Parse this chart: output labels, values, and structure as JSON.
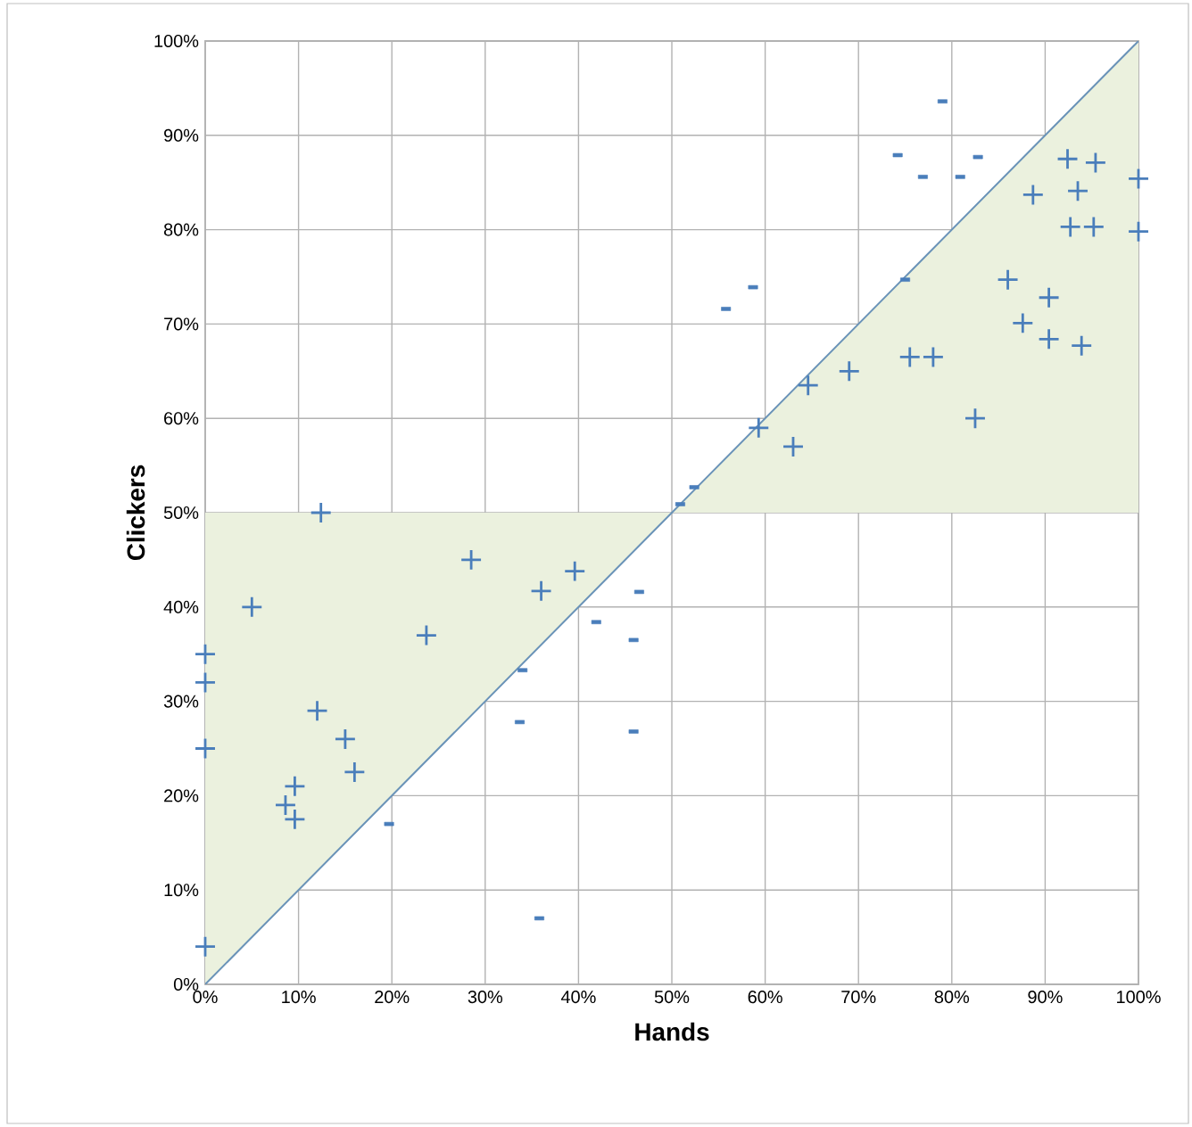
{
  "chart_data": {
    "type": "scatter",
    "xlabel": "Hands",
    "ylabel": "Clickers",
    "xlim": [
      0,
      100
    ],
    "ylim": [
      0,
      100
    ],
    "xticks": [
      {
        "value": 0,
        "label": "0%"
      },
      {
        "value": 10,
        "label": "10%"
      },
      {
        "value": 20,
        "label": "20%"
      },
      {
        "value": 30,
        "label": "30%"
      },
      {
        "value": 40,
        "label": "40%"
      },
      {
        "value": 50,
        "label": "50%"
      },
      {
        "value": 60,
        "label": "60%"
      },
      {
        "value": 70,
        "label": "70%"
      },
      {
        "value": 80,
        "label": "80%"
      },
      {
        "value": 90,
        "label": "90%"
      },
      {
        "value": 100,
        "label": "100%"
      }
    ],
    "yticks": [
      {
        "value": 0,
        "label": "0%"
      },
      {
        "value": 10,
        "label": "10%"
      },
      {
        "value": 20,
        "label": "20%"
      },
      {
        "value": 30,
        "label": "30%"
      },
      {
        "value": 40,
        "label": "40%"
      },
      {
        "value": 50,
        "label": "50%"
      },
      {
        "value": 60,
        "label": "60%"
      },
      {
        "value": 70,
        "label": "70%"
      },
      {
        "value": 80,
        "label": "80%"
      },
      {
        "value": 90,
        "label": "90%"
      },
      {
        "value": 100,
        "label": "100%"
      }
    ],
    "grid": true,
    "series": [
      {
        "type": "line",
        "color": "#6a93b8",
        "marker": "none",
        "x": [
          0,
          50,
          100
        ],
        "values": [
          0,
          50,
          100
        ],
        "lower": [
          0,
          50,
          50
        ],
        "upper": [
          50,
          50,
          100
        ]
      },
      {
        "color": "#4a7ebb",
        "marker": "cross",
        "x": [
          0,
          0,
          0,
          0,
          5,
          12.4,
          12,
          9.6,
          8.6,
          9.6,
          15,
          16,
          23.7,
          28.5,
          36,
          39.6,
          59.3,
          63,
          64.6,
          69,
          75.5,
          78,
          82.5,
          86,
          87.6,
          90.4,
          90.4,
          93.9,
          88.7,
          92.4,
          95.4,
          93.5,
          92.7,
          95.2,
          100,
          100
        ],
        "values": [
          4,
          25,
          32,
          35,
          40,
          50,
          29,
          21,
          19,
          17.5,
          26,
          22.5,
          37,
          45,
          41.7,
          43.8,
          59,
          57,
          63.5,
          65,
          66.5,
          66.5,
          60,
          74.7,
          70.1,
          72.8,
          68.4,
          67.7,
          83.7,
          87.5,
          87.1,
          84.1,
          80.3,
          80.3,
          85.4,
          79.8
        ]
      },
      {
        "color": "#4a7ebb",
        "marker": "square",
        "x": [
          19.7,
          35.8,
          33.7,
          34,
          41.9,
          45.9,
          46.5,
          45.9,
          50.9,
          52.4,
          55.8,
          58.7,
          75,
          74.2,
          76.9,
          80.9,
          82.8,
          79
        ],
        "values": [
          17,
          7,
          27.8,
          33.3,
          38.4,
          36.5,
          41.6,
          26.8,
          50.9,
          52.7,
          71.6,
          73.9,
          74.7,
          87.9,
          85.6,
          85.6,
          87.7,
          93.6
        ]
      }
    ]
  }
}
